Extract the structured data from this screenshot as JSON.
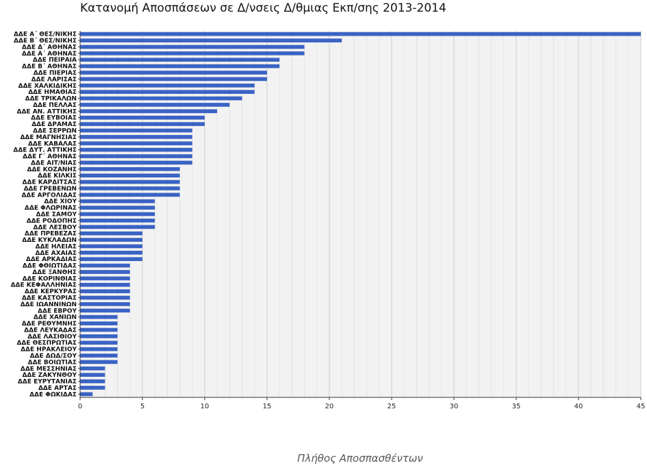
{
  "chart_data": {
    "type": "bar",
    "orientation": "horizontal",
    "title": "Κατανομή Αποσπάσεων σε Δ/νσεις Δ/θμιας Εκπ/σης 2013-2014",
    "xlabel": "Πλήθος Αποσπασθέντων",
    "ylabel": "",
    "xlim": [
      0,
      45
    ],
    "xticks": [
      0,
      5,
      10,
      15,
      20,
      25,
      30,
      35,
      40,
      45
    ],
    "grid": true,
    "bar_color": "#3a63c4",
    "categories": [
      "ΔΔΕ Α΄ ΘΕΣ/ΝΙΚΗΣ",
      "ΔΔΕ Β΄ ΘΕΣ/ΝΙΚΗΣ",
      "ΔΔΕ Δ΄ ΑΘΗΝΑΣ",
      "ΔΔΕ Α΄ ΑΘΗΝΑΣ",
      "ΔΔΕ ΠΕΙΡΑΙΑ",
      "ΔΔΕ Β΄ ΑΘΗΝΑΣ",
      "ΔΔΕ ΠΙΕΡΙΑΣ",
      "ΔΔΕ ΛΑΡΙΣΑΣ",
      "ΔΔΕ ΧΑΛΚΙΔΙΚΗΣ",
      "ΔΔΕ ΗΜΑΘΙΑΣ",
      "ΔΔΕ ΤΡΙΚΑΛΩΝ",
      "ΔΔΕ ΠΕΛΛΑΣ",
      "ΔΔΕ ΑΝ. ΑΤΤΙΚΗΣ",
      "ΔΔΕ ΕΥΒΟΙΑΣ",
      "ΔΔΕ ΔΡΑΜΑΣ",
      "ΔΔΕ ΣΕΡΡΩΝ",
      "ΔΔΕ ΜΑΓΝΗΣΙΑΣ",
      "ΔΔΕ ΚΑΒΑΛΑΣ",
      "ΔΔΕ ΔΥΤ. ΑΤΤΙΚΗΣ",
      "ΔΔΕ Γ΄ ΑΘΗΝΑΣ",
      "ΔΔΕ ΑΙΤ/ΝΙΑΣ",
      "ΔΔΕ ΚΟΖΑΝΗΣ",
      "ΔΔΕ ΚΙΛΚΙΣ",
      "ΔΔΕ ΚΑΡΔΙΤΣΑΣ",
      "ΔΔΕ ΓΡΕΒΕΝΩΝ",
      "ΔΔΕ ΑΡΓΟΛΙΔΑΣ",
      "ΔΔΕ ΧΙΟΥ",
      "ΔΔΕ ΦΛΩΡΙΝΑΣ",
      "ΔΔΕ ΣΑΜΟΥ",
      "ΔΔΕ ΡΟΔΟΠΗΣ",
      "ΔΔΕ ΛΕΣΒΟΥ",
      "ΔΔΕ ΠΡΕΒΕΖΑΣ",
      "ΔΔΕ ΚΥΚΛΑΔΩΝ",
      "ΔΔΕ ΗΛΕΙΑΣ",
      "ΔΔΕ ΑΧΑΙΑΣ",
      "ΔΔΕ ΑΡΚΑΔΙΑΣ",
      "ΔΔΕ ΦΘΙΩΤΙΔΑΣ",
      "ΔΔΕ ΞΑΝΘΗΣ",
      "ΔΔΕ ΚΟΡΙΝΘΙΑΣ",
      "ΔΔΕ ΚΕΦΑΛΛΗΝΙΑΣ",
      "ΔΔΕ ΚΕΡΚΥΡΑΣ",
      "ΔΔΕ ΚΑΣΤΟΡΙΑΣ",
      "ΔΔΕ ΙΩΑΝΝΙΝΩΝ",
      "ΔΔΕ ΕΒΡΟΥ",
      "ΔΔΕ ΧΑΝΙΩΝ",
      "ΔΔΕ ΡΕΘΥΜΝΗΣ",
      "ΔΔΕ ΛΕΥΚΑΔΑΣ",
      "ΔΔΕ ΛΑΣΙΘΙΟΥ",
      "ΔΔΕ ΘΕΣΠΡΩΤΙΑΣ",
      "ΔΔΕ ΗΡΑΚΛΕΙΟΥ",
      "ΔΔΕ ΔΩΔ/ΣΟΥ",
      "ΔΔΕ ΒΟΙΩΤΙΑΣ",
      "ΔΔΕ ΜΕΣΣΗΝΙΑΣ",
      "ΔΔΕ ΖΑΚΥΝΘΟΥ",
      "ΔΔΕ ΕΥΡΥΤΑΝΙΑΣ",
      "ΔΔΕ ΑΡΤΑΣ",
      "ΔΔΕ ΦΩΚΙΔΑΣ"
    ],
    "values": [
      45,
      21,
      18,
      18,
      16,
      16,
      15,
      15,
      14,
      14,
      13,
      12,
      11,
      10,
      10,
      9,
      9,
      9,
      9,
      9,
      9,
      8,
      8,
      8,
      8,
      8,
      6,
      6,
      6,
      6,
      6,
      5,
      5,
      5,
      5,
      5,
      4,
      4,
      4,
      4,
      4,
      4,
      4,
      4,
      3,
      3,
      3,
      3,
      3,
      3,
      3,
      3,
      2,
      2,
      2,
      2,
      1
    ]
  }
}
